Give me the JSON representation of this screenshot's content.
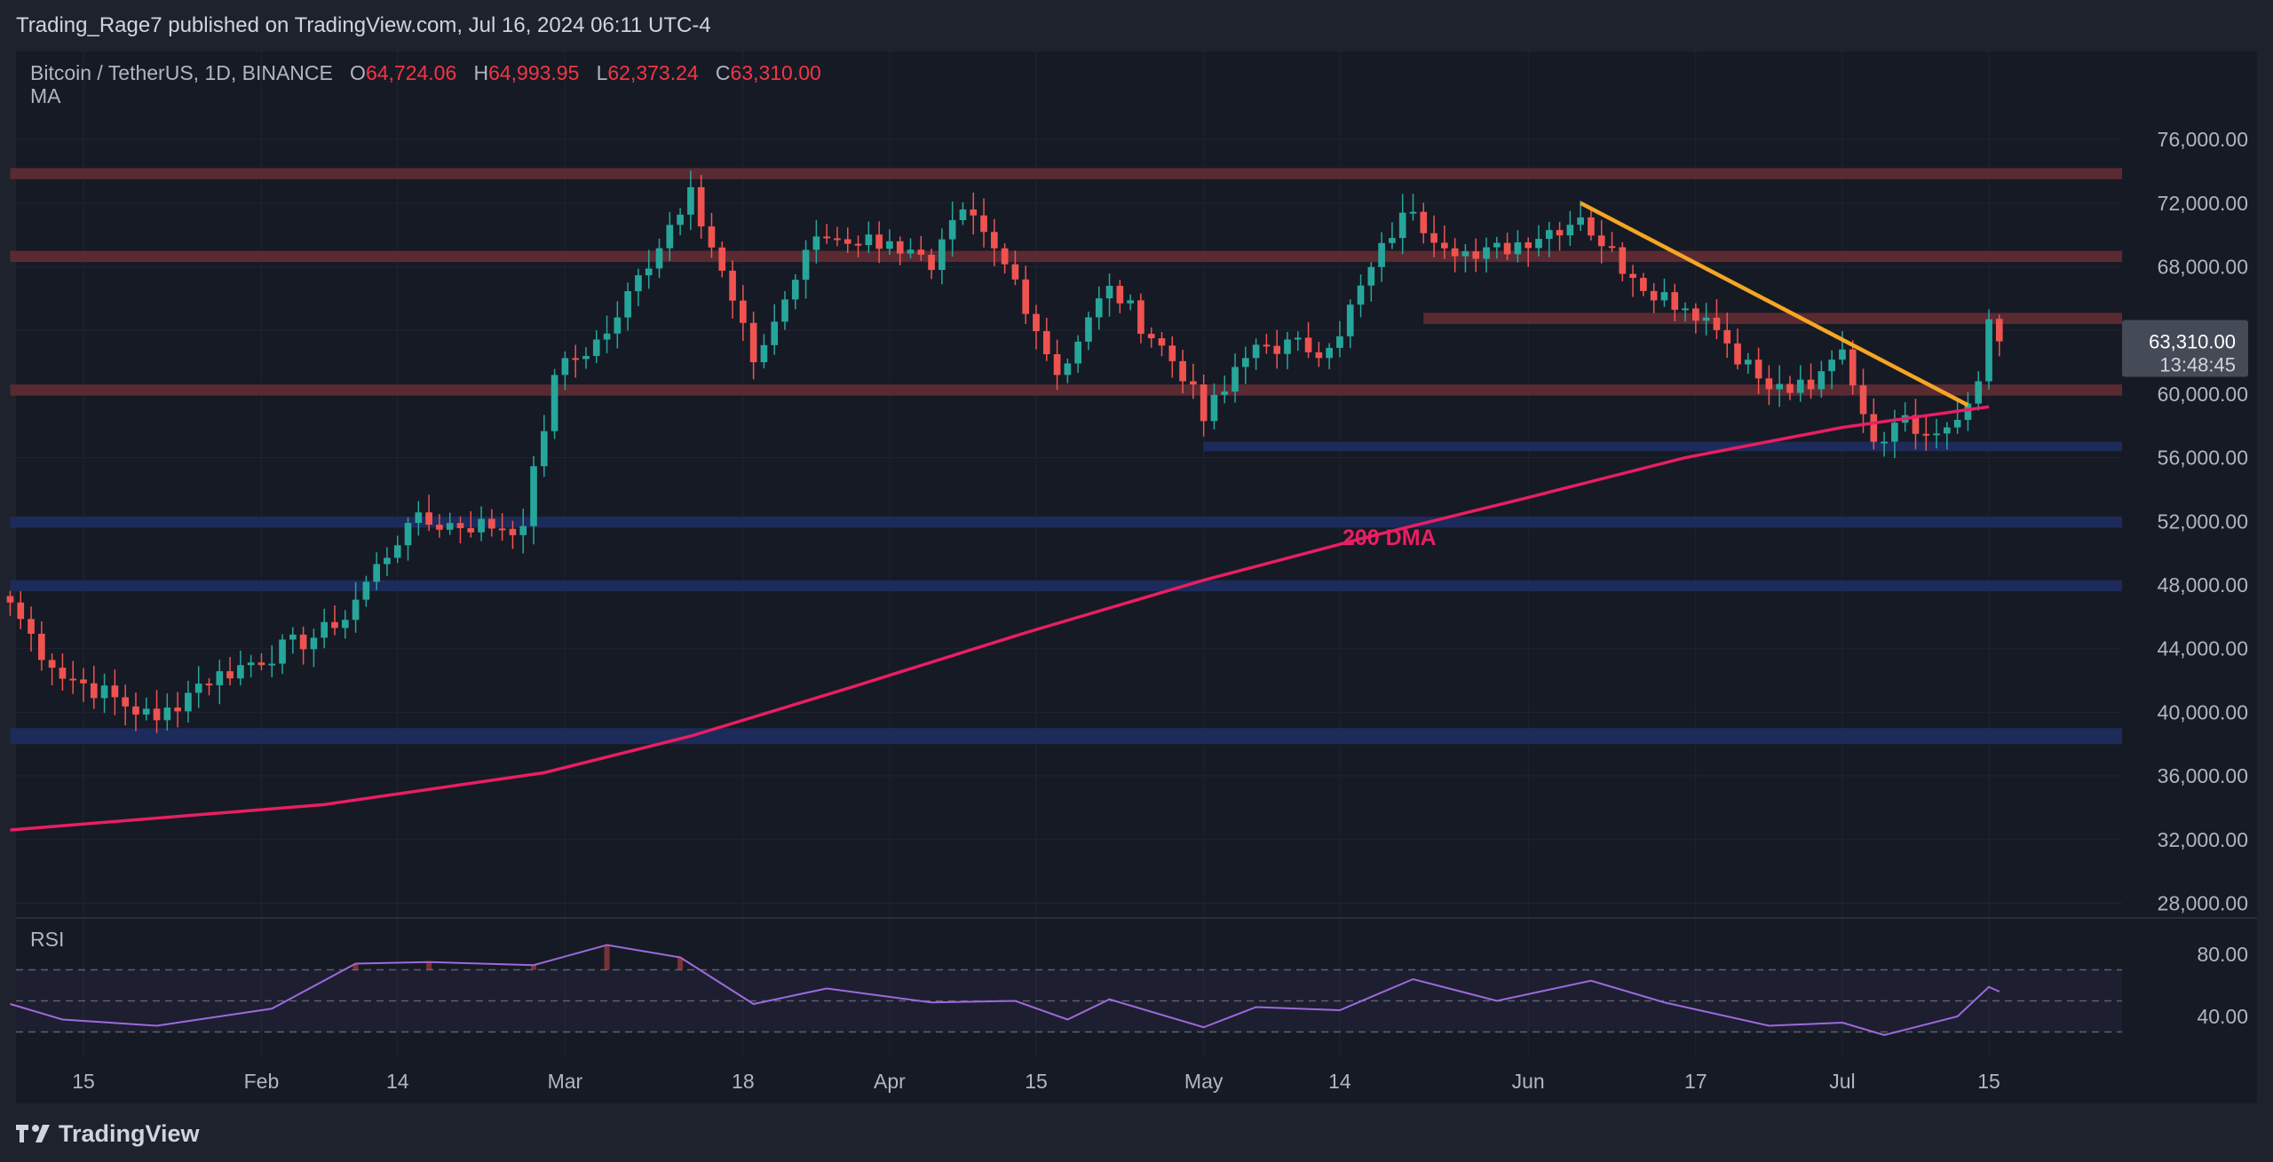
{
  "header": {
    "published": "Trading_Rage7 published on TradingView.com, Jul 16, 2024 06:11 UTC-4"
  },
  "legend": {
    "symbol": "Bitcoin / TetherUS, 1D, BINANCE",
    "open_label": "O",
    "open": "64,724.06",
    "high_label": "H",
    "high": "64,993.95",
    "low_label": "L",
    "low": "62,373.24",
    "close_label": "C",
    "close": "63,310.00",
    "indicator": "MA"
  },
  "price_tag": {
    "price": "63,310.00",
    "countdown": "13:48:45"
  },
  "annotation": "200 DMA",
  "rsi_label": "RSI",
  "footer": {
    "brand": "TradingView"
  },
  "colors": {
    "up": "#26a69a",
    "down": "#ef5350",
    "ma": "#e91e63",
    "trendline": "#f5a623",
    "resistance": "#5a2a33",
    "support": "#1d2b5a"
  },
  "chart_data": {
    "type": "candlestick",
    "title": "Bitcoin / TetherUS, 1D, BINANCE",
    "y_ticks": [
      "76,000.00",
      "72,000.00",
      "68,000.00",
      "64,000.00",
      "60,000.00",
      "56,000.00",
      "52,000.00",
      "48,000.00",
      "44,000.00",
      "40,000.00",
      "36,000.00",
      "32,000.00",
      "28,000.00"
    ],
    "ylim": [
      27300,
      77400
    ],
    "x_ticks": [
      {
        "label": "15",
        "date": "2024-01-15"
      },
      {
        "label": "Feb",
        "date": "2024-02-01"
      },
      {
        "label": "14",
        "date": "2024-02-14"
      },
      {
        "label": "Mar",
        "date": "2024-03-01"
      },
      {
        "label": "18",
        "date": "2024-03-18"
      },
      {
        "label": "Apr",
        "date": "2024-04-01"
      },
      {
        "label": "15",
        "date": "2024-04-15"
      },
      {
        "label": "May",
        "date": "2024-05-01"
      },
      {
        "label": "14",
        "date": "2024-05-14"
      },
      {
        "label": "Jun",
        "date": "2024-06-01"
      },
      {
        "label": "17",
        "date": "2024-06-17"
      },
      {
        "label": "Jul",
        "date": "2024-07-01"
      },
      {
        "label": "15",
        "date": "2024-07-15"
      }
    ],
    "resistance_zones": [
      {
        "from": "2024-01-08",
        "low": 73500,
        "high": 74200
      },
      {
        "from": "2024-01-08",
        "low": 68300,
        "high": 69000
      },
      {
        "from": "2024-05-22",
        "low": 64400,
        "high": 65100
      },
      {
        "from": "2024-01-08",
        "low": 59900,
        "high": 60600
      }
    ],
    "support_zones": [
      {
        "from": "2024-05-01",
        "low": 56400,
        "high": 57000
      },
      {
        "from": "2024-01-08",
        "low": 51600,
        "high": 52300
      },
      {
        "from": "2024-01-08",
        "low": 47600,
        "high": 48300
      },
      {
        "from": "2024-01-08",
        "low": 38000,
        "high": 39000
      }
    ],
    "trendline": {
      "from_date": "2024-06-06",
      "from_value": 72000,
      "to_date": "2024-07-13",
      "to_value": 59300
    },
    "ma_200": [
      {
        "date": "2024-01-08",
        "value": 32600
      },
      {
        "date": "2024-02-07",
        "value": 34200
      },
      {
        "date": "2024-02-28",
        "value": 36200
      },
      {
        "date": "2024-03-13",
        "value": 38500
      },
      {
        "date": "2024-03-28",
        "value": 41500
      },
      {
        "date": "2024-04-14",
        "value": 45000
      },
      {
        "date": "2024-05-01",
        "value": 48300
      },
      {
        "date": "2024-05-16",
        "value": 50900
      },
      {
        "date": "2024-06-01",
        "value": 53500
      },
      {
        "date": "2024-06-16",
        "value": 56000
      },
      {
        "date": "2024-07-01",
        "value": 57900
      },
      {
        "date": "2024-07-15",
        "value": 59200
      }
    ],
    "key_points": [
      {
        "date": "2024-01-08",
        "close": 46900
      },
      {
        "date": "2024-01-12",
        "close": 42800
      },
      {
        "date": "2024-01-22",
        "close": 39500
      },
      {
        "date": "2024-01-26",
        "close": 41800
      },
      {
        "date": "2024-02-08",
        "close": 45300
      },
      {
        "date": "2024-02-15",
        "close": 51900
      },
      {
        "date": "2024-02-26",
        "close": 51700
      },
      {
        "date": "2024-02-29",
        "close": 61200
      },
      {
        "date": "2024-03-05",
        "close": 63800
      },
      {
        "date": "2024-03-13",
        "close": 73000
      },
      {
        "date": "2024-03-19",
        "close": 62000
      },
      {
        "date": "2024-03-25",
        "close": 69900
      },
      {
        "date": "2024-04-01",
        "close": 69600
      },
      {
        "date": "2024-04-05",
        "close": 67800
      },
      {
        "date": "2024-04-08",
        "close": 71600
      },
      {
        "date": "2024-04-13",
        "close": 67200
      },
      {
        "date": "2024-04-17",
        "close": 61200
      },
      {
        "date": "2024-04-22",
        "close": 66800
      },
      {
        "date": "2024-04-30",
        "close": 60600
      },
      {
        "date": "2024-05-01",
        "close": 58300
      },
      {
        "date": "2024-05-06",
        "close": 63100
      },
      {
        "date": "2024-05-13",
        "close": 62900
      },
      {
        "date": "2024-05-20",
        "close": 71400
      },
      {
        "date": "2024-05-27",
        "close": 68500
      },
      {
        "date": "2024-06-06",
        "close": 71100
      },
      {
        "date": "2024-06-11",
        "close": 67300
      },
      {
        "date": "2024-06-18",
        "close": 64800
      },
      {
        "date": "2024-06-24",
        "close": 60300
      },
      {
        "date": "2024-06-28",
        "close": 60300
      },
      {
        "date": "2024-07-01",
        "close": 62800
      },
      {
        "date": "2024-07-04",
        "close": 57000
      },
      {
        "date": "2024-07-06",
        "close": 58200
      },
      {
        "date": "2024-07-11",
        "close": 57900
      },
      {
        "date": "2024-07-13",
        "close": 59400
      },
      {
        "date": "2024-07-14",
        "close": 60800
      },
      {
        "date": "2024-07-15",
        "close": 64700
      },
      {
        "date": "2024-07-16",
        "open": 64724.06,
        "high": 64993.95,
        "low": 62373.24,
        "close": 63310.0
      }
    ],
    "rsi": {
      "y_ticks": [
        "80.00",
        "40.00"
      ],
      "ylim": [
        20,
        100
      ],
      "bands": [
        70,
        50,
        30
      ],
      "values": [
        {
          "date": "2024-01-08",
          "value": 48
        },
        {
          "date": "2024-01-13",
          "value": 38
        },
        {
          "date": "2024-01-22",
          "value": 34
        },
        {
          "date": "2024-02-02",
          "value": 45
        },
        {
          "date": "2024-02-10",
          "value": 74
        },
        {
          "date": "2024-02-17",
          "value": 75
        },
        {
          "date": "2024-02-27",
          "value": 73
        },
        {
          "date": "2024-03-05",
          "value": 86
        },
        {
          "date": "2024-03-12",
          "value": 78
        },
        {
          "date": "2024-03-19",
          "value": 48
        },
        {
          "date": "2024-03-26",
          "value": 58
        },
        {
          "date": "2024-04-05",
          "value": 49
        },
        {
          "date": "2024-04-13",
          "value": 50
        },
        {
          "date": "2024-04-18",
          "value": 38
        },
        {
          "date": "2024-04-22",
          "value": 51
        },
        {
          "date": "2024-05-01",
          "value": 33
        },
        {
          "date": "2024-05-06",
          "value": 46
        },
        {
          "date": "2024-05-14",
          "value": 44
        },
        {
          "date": "2024-05-21",
          "value": 64
        },
        {
          "date": "2024-05-29",
          "value": 50
        },
        {
          "date": "2024-06-07",
          "value": 63
        },
        {
          "date": "2024-06-14",
          "value": 49
        },
        {
          "date": "2024-06-24",
          "value": 34
        },
        {
          "date": "2024-07-01",
          "value": 36
        },
        {
          "date": "2024-07-05",
          "value": 28
        },
        {
          "date": "2024-07-12",
          "value": 40
        },
        {
          "date": "2024-07-15",
          "value": 59
        },
        {
          "date": "2024-07-16",
          "value": 56
        }
      ]
    }
  }
}
